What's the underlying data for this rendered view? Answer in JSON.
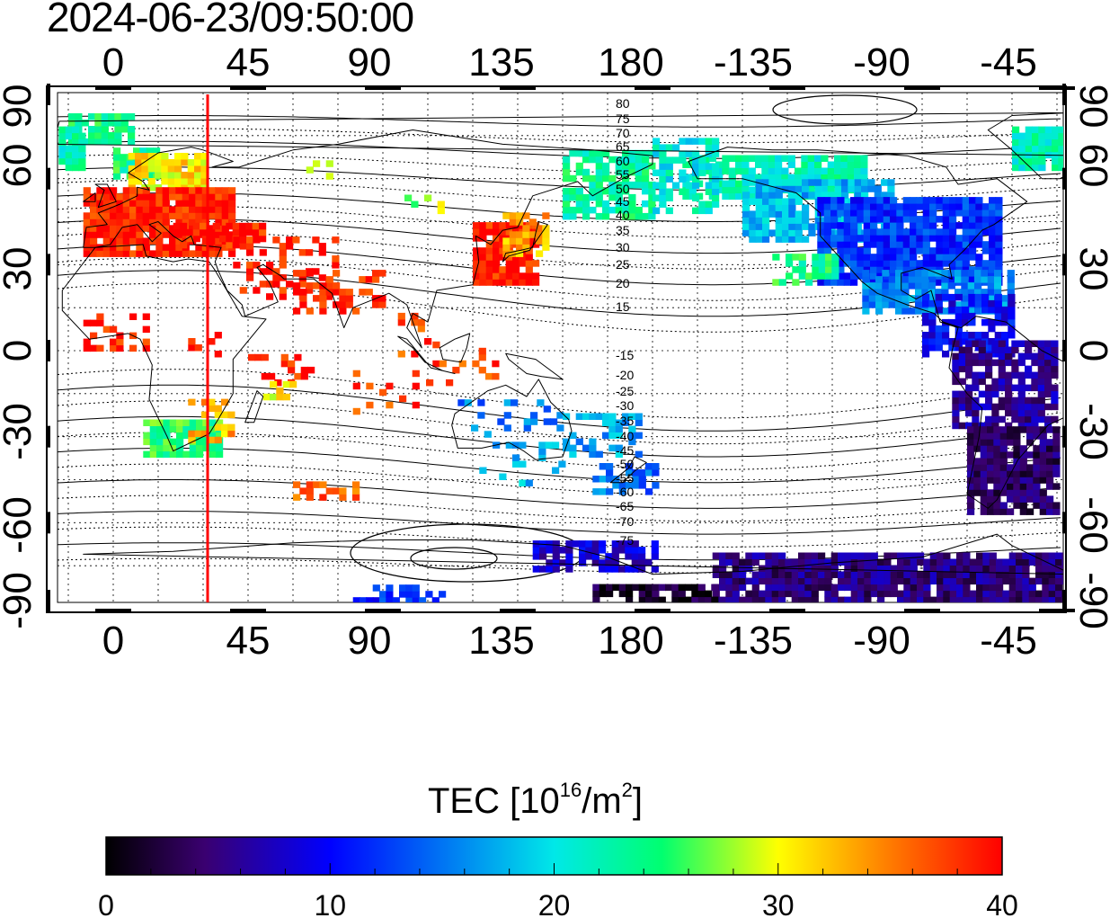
{
  "map": {
    "timestamp": "2024-06-23/09:50:00",
    "top_lon_ticks": [
      "0",
      "45",
      "90",
      "135",
      "180",
      "-135",
      "-90",
      "-45"
    ],
    "bottom_lon_ticks": [
      "0",
      "45",
      "90",
      "135",
      "180",
      "-135",
      "-90",
      "-45"
    ],
    "left_lat_ticks": [
      "90",
      "60",
      "30",
      "0",
      "-30",
      "-60",
      "-90"
    ],
    "right_lat_ticks": [
      "90",
      "60",
      "30",
      "0",
      "-30",
      "-60",
      "-90"
    ],
    "lon_tick_values": [
      0,
      45,
      90,
      135,
      180,
      -135,
      -90,
      -45
    ],
    "lat_tick_values": [
      90,
      60,
      30,
      0,
      -30,
      -60,
      -90
    ],
    "contour_labels": [
      "80",
      "75",
      "70",
      "65",
      "60",
      "55",
      "50",
      "45",
      "40",
      "35",
      "30",
      "25",
      "20",
      "15",
      "-15",
      "-20",
      "-25",
      "-30",
      "-35",
      "-40",
      "-45",
      "-50",
      "-55",
      "-60",
      "-65",
      "-70",
      "-75"
    ],
    "marker_line_lon": 31.5,
    "marker_line_color": "#ff0000"
  },
  "colorbar": {
    "title_main": "TEC  [10",
    "title_exp1": "16",
    "title_mid": "/m",
    "title_exp2": "2",
    "title_end": "]",
    "tick_labels": [
      "0",
      "10",
      "20",
      "30",
      "40"
    ],
    "min": 0,
    "max": 40,
    "colors": [
      "#000000",
      "#3a0070",
      "#0000ff",
      "#00c8ff",
      "#00ff80",
      "#ffff00",
      "#ff8000",
      "#ff0000"
    ]
  }
}
